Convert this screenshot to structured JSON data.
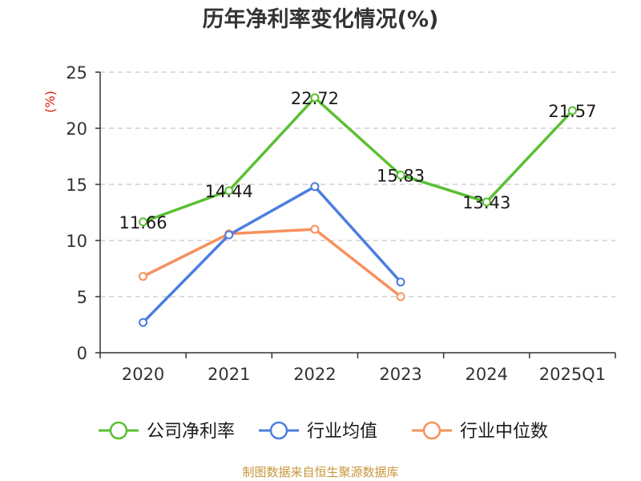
{
  "chart_data": {
    "type": "line",
    "title": "历年净利率变化情况(%)",
    "ylabel": "(%)",
    "categories": [
      "2020",
      "2021",
      "2022",
      "2023",
      "2024",
      "2025Q1"
    ],
    "yticks": [
      0,
      5,
      10,
      15,
      20,
      25
    ],
    "ylim": [
      0,
      25
    ],
    "grid": true,
    "legend_position": "bottom",
    "series": [
      {
        "name": "公司净利率",
        "color": "#5ac033",
        "values": [
          11.66,
          14.44,
          22.72,
          15.83,
          13.43,
          21.57
        ],
        "labels": [
          "11.66",
          "14.44",
          "22.72",
          "15.83",
          "13.43",
          "21.57"
        ]
      },
      {
        "name": "行业均值",
        "color": "#4c7ee0",
        "values": [
          2.7,
          10.5,
          14.8,
          6.3,
          null,
          null
        ],
        "labels": null
      },
      {
        "name": "行业中位数",
        "color": "#f7915c",
        "values": [
          6.8,
          10.6,
          11.0,
          5.0,
          null,
          null
        ],
        "labels": null
      }
    ]
  },
  "footer": {
    "source": "制图数据来自恒生聚源数据库",
    "color": "#c8963c"
  },
  "colors": {
    "axis": "#333333",
    "grid": "#c8c8c8",
    "ylabel": "#d81e06",
    "title": "#333333"
  }
}
